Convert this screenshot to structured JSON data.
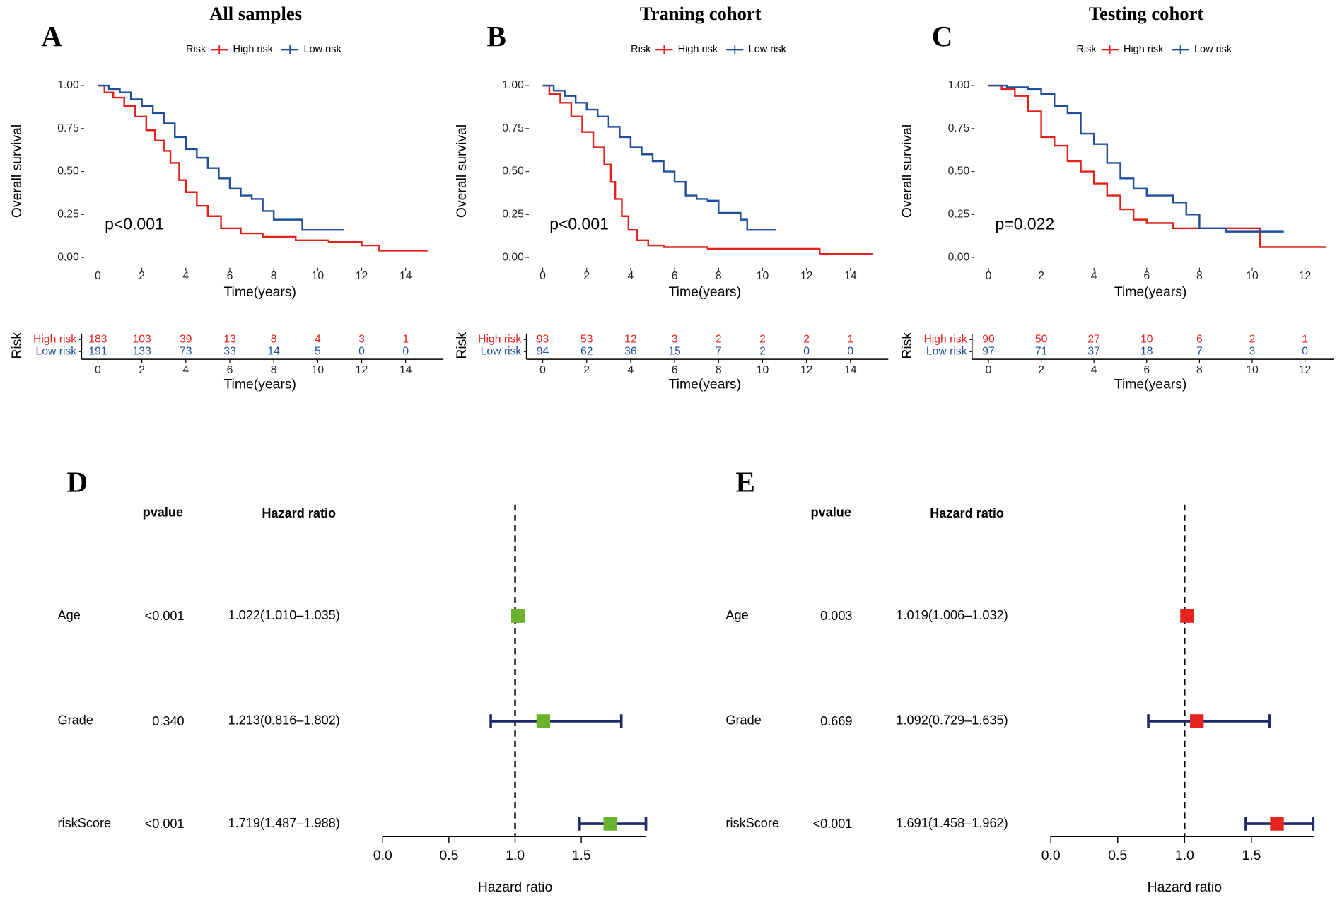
{
  "chart_data": [
    {
      "type": "line",
      "panel": "A",
      "title": "All samples",
      "legend_title": "Risk",
      "xlabel": "Time(years)",
      "ylabel": "Overall survival",
      "annotation": "p<0.001",
      "xlim": [
        -0.74,
        15.72
      ],
      "xticks": [
        0,
        2,
        4,
        6,
        8,
        10,
        12,
        14
      ],
      "ylim": [
        -0.06,
        1.06
      ],
      "yticks": [
        {
          "value": 0,
          "label": "0.00"
        },
        {
          "value": 0.25,
          "label": "0.25"
        },
        {
          "value": 0.5,
          "label": "0.50"
        },
        {
          "value": 0.75,
          "label": "0.75"
        },
        {
          "value": 1,
          "label": "1.00"
        }
      ],
      "series": [
        {
          "name": "High risk",
          "color": "#e3211c",
          "x": [
            0,
            0.3,
            0.7,
            1.2,
            1.7,
            2.2,
            2.6,
            3.0,
            3.3,
            3.7,
            4.0,
            4.5,
            5.0,
            5.6,
            6.5,
            7.5,
            9.0,
            10.5,
            12.0,
            12.8,
            15.0
          ],
          "values": [
            1,
            0.96,
            0.93,
            0.88,
            0.82,
            0.74,
            0.68,
            0.62,
            0.55,
            0.45,
            0.38,
            0.3,
            0.24,
            0.17,
            0.14,
            0.12,
            0.1,
            0.09,
            0.07,
            0.04,
            0.04
          ],
          "at_risk": [
            183,
            103,
            39,
            13,
            8,
            4,
            3,
            1
          ]
        },
        {
          "name": "Low risk",
          "color": "#1f4e9c",
          "x": [
            0,
            0.5,
            1,
            1.5,
            2,
            2.5,
            3,
            3.5,
            4,
            4.5,
            5,
            5.5,
            6,
            6.5,
            7,
            7.5,
            8,
            9,
            9.3,
            11.2
          ],
          "values": [
            1,
            0.98,
            0.96,
            0.92,
            0.88,
            0.84,
            0.78,
            0.7,
            0.63,
            0.58,
            0.52,
            0.46,
            0.4,
            0.36,
            0.34,
            0.27,
            0.22,
            0.22,
            0.16,
            0.16
          ],
          "at_risk": [
            191,
            133,
            73,
            33,
            14,
            5,
            0,
            0
          ]
        }
      ],
      "risk_table": {
        "ylabel": "Risk",
        "xlabel": "Time(years)"
      }
    },
    {
      "type": "line",
      "panel": "B",
      "title": "Traning cohort",
      "legend_title": "Risk",
      "xlabel": "Time(years)",
      "ylabel": "Overall survival",
      "annotation": "p<0.001",
      "xlim": [
        -0.74,
        15.72
      ],
      "xticks": [
        0,
        2,
        4,
        6,
        8,
        10,
        12,
        14
      ],
      "ylim": [
        -0.06,
        1.06
      ],
      "yticks": [
        {
          "value": 0,
          "label": "0.00"
        },
        {
          "value": 0.25,
          "label": "0.25"
        },
        {
          "value": 0.5,
          "label": "0.50"
        },
        {
          "value": 0.75,
          "label": "0.75"
        },
        {
          "value": 1,
          "label": "1.00"
        }
      ],
      "series": [
        {
          "name": "High risk",
          "color": "#e3211c",
          "x": [
            0,
            0.3,
            0.8,
            1.3,
            1.8,
            2.3,
            2.8,
            3.1,
            3.3,
            3.6,
            3.9,
            4.3,
            4.8,
            5.5,
            7.5,
            12.6,
            15
          ],
          "values": [
            1,
            0.95,
            0.9,
            0.82,
            0.73,
            0.64,
            0.54,
            0.44,
            0.34,
            0.24,
            0.16,
            0.1,
            0.07,
            0.06,
            0.05,
            0.02,
            0.02
          ],
          "at_risk": [
            93,
            53,
            12,
            3,
            2,
            2,
            2,
            1
          ]
        },
        {
          "name": "Low risk",
          "color": "#1f4e9c",
          "x": [
            0,
            0.5,
            1,
            1.5,
            2,
            2.5,
            3,
            3.5,
            4,
            4.5,
            5,
            5.5,
            6,
            6.5,
            7,
            7.5,
            8,
            9,
            9.3,
            10.6
          ],
          "values": [
            1,
            0.97,
            0.94,
            0.9,
            0.86,
            0.82,
            0.76,
            0.7,
            0.64,
            0.6,
            0.56,
            0.5,
            0.44,
            0.36,
            0.34,
            0.33,
            0.26,
            0.22,
            0.16,
            0.16
          ],
          "at_risk": [
            94,
            62,
            36,
            15,
            7,
            2,
            0,
            0
          ]
        }
      ],
      "risk_table": {
        "ylabel": "Risk",
        "xlabel": "Time(years)"
      }
    },
    {
      "type": "line",
      "panel": "C",
      "title": "Testing cohort",
      "legend_title": "Risk",
      "xlabel": "Time(years)",
      "ylabel": "Overall survival",
      "annotation": "p=0.022",
      "xlim": [
        -0.62,
        13.1
      ],
      "xticks": [
        0,
        2,
        4,
        6,
        8,
        10,
        12
      ],
      "ylim": [
        -0.06,
        1.06
      ],
      "yticks": [
        {
          "value": 0,
          "label": "0.00"
        },
        {
          "value": 0.25,
          "label": "0.25"
        },
        {
          "value": 0.5,
          "label": "0.50"
        },
        {
          "value": 0.75,
          "label": "0.75"
        },
        {
          "value": 1,
          "label": "1.00"
        }
      ],
      "series": [
        {
          "name": "High risk",
          "color": "#e3211c",
          "x": [
            0,
            0.5,
            1,
            1.5,
            2,
            2.5,
            3,
            3.5,
            4,
            4.5,
            5,
            5.5,
            6,
            7,
            8,
            9,
            10.3,
            12.8
          ],
          "values": [
            1,
            0.98,
            0.94,
            0.85,
            0.7,
            0.65,
            0.56,
            0.5,
            0.43,
            0.36,
            0.28,
            0.22,
            0.2,
            0.17,
            0.17,
            0.17,
            0.06,
            0.06
          ],
          "at_risk": [
            90,
            50,
            27,
            10,
            6,
            2,
            1
          ]
        },
        {
          "name": "Low risk",
          "color": "#1f4e9c",
          "x": [
            0,
            0.7,
            1.5,
            2,
            2.5,
            3,
            3.5,
            4,
            4.5,
            5,
            5.5,
            6,
            6.5,
            7,
            7.5,
            8,
            9,
            11.2
          ],
          "values": [
            1,
            0.99,
            0.98,
            0.95,
            0.88,
            0.84,
            0.72,
            0.66,
            0.55,
            0.46,
            0.4,
            0.36,
            0.36,
            0.32,
            0.25,
            0.17,
            0.15,
            0.15
          ],
          "at_risk": [
            97,
            71,
            37,
            18,
            7,
            3,
            0
          ]
        }
      ],
      "risk_table": {
        "ylabel": "Risk",
        "xlabel": "Time(years)"
      }
    },
    {
      "type": "forest",
      "panel": "D",
      "pvalue_header": "pvalue",
      "hr_header": "Hazard ratio",
      "xlabel": "Hazard ratio",
      "color": "#6ab42d",
      "line_color": "#1f2a6b",
      "reference": 1,
      "xlim": [
        0,
        1.99
      ],
      "xticks": [
        {
          "value": 0,
          "label": "0.0"
        },
        {
          "value": 0.5,
          "label": "0.5"
        },
        {
          "value": 1,
          "label": "1.0"
        },
        {
          "value": 1.5,
          "label": "1.5"
        }
      ],
      "categories": [
        "Age",
        "Grade",
        "riskScore"
      ],
      "pvalues": [
        "<0.001",
        "0.340",
        "<0.001"
      ],
      "values": [
        1.022,
        1.213,
        1.719
      ],
      "lower": [
        1.01,
        0.816,
        1.487
      ],
      "upper": [
        1.035,
        1.802,
        1.988
      ],
      "value_labels": [
        "1.022(1.010–1.035)",
        "1.213(0.816–1.802)",
        "1.719(1.487–1.988)"
      ]
    },
    {
      "type": "forest",
      "panel": "E",
      "pvalue_header": "pvalue",
      "hr_header": "Hazard ratio",
      "xlabel": "Hazard ratio",
      "color": "#e8241f",
      "line_color": "#1f2a6b",
      "reference": 1,
      "xlim": [
        0,
        1.97
      ],
      "xticks": [
        {
          "value": 0,
          "label": "0.0"
        },
        {
          "value": 0.5,
          "label": "0.5"
        },
        {
          "value": 1,
          "label": "1.0"
        },
        {
          "value": 1.5,
          "label": "1.5"
        }
      ],
      "categories": [
        "Age",
        "Grade",
        "riskScore"
      ],
      "pvalues": [
        "0.003",
        "0.669",
        "<0.001"
      ],
      "values": [
        1.019,
        1.092,
        1.691
      ],
      "lower": [
        1.006,
        0.729,
        1.458
      ],
      "upper": [
        1.032,
        1.635,
        1.962
      ],
      "value_labels": [
        "1.019(1.006–1.032)",
        "1.092(0.729–1.635)",
        "1.691(1.458–1.962)"
      ]
    }
  ]
}
